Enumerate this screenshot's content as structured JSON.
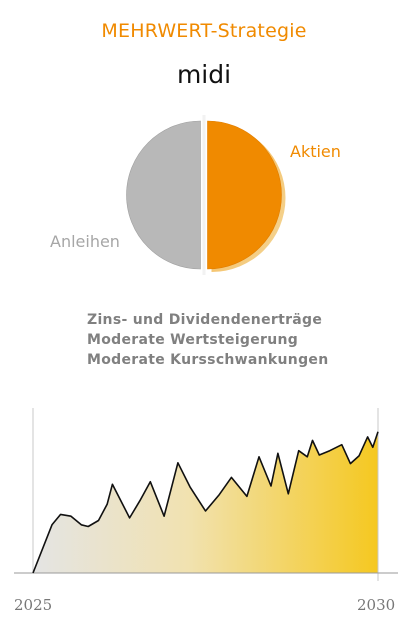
{
  "header": {
    "title": "MEHRWERT-Strategie",
    "subtitle": "midi"
  },
  "colors": {
    "accent": "#f08a00",
    "bond_gray": "#b8b8b8",
    "label_gray": "#a6a6a6",
    "text_gray": "#808080"
  },
  "features": [
    "Zins- und Dividendenerträge",
    "Moderate Wertsteigerung",
    "Moderate Kursschwankungen"
  ],
  "chart_data": [
    {
      "type": "pie",
      "slices": [
        {
          "label": "Aktien",
          "value": 50,
          "color": "#f08a00"
        },
        {
          "label": "Anleihen",
          "value": 50,
          "color": "#b8b8b8"
        }
      ]
    },
    {
      "type": "area",
      "x_ticks": [
        "2025",
        "2030"
      ],
      "x": [
        0,
        0.055,
        0.08,
        0.11,
        0.14,
        0.16,
        0.19,
        0.215,
        0.23,
        0.28,
        0.31,
        0.34,
        0.38,
        0.42,
        0.455,
        0.5,
        0.54,
        0.575,
        0.62,
        0.655,
        0.69,
        0.71,
        0.74,
        0.77,
        0.795,
        0.81,
        0.83,
        0.86,
        0.895,
        0.92,
        0.945,
        0.97,
        0.985,
        1.0
      ],
      "values": [
        0,
        5.6,
        6.8,
        6.6,
        5.6,
        5.4,
        6.1,
        8.0,
        10.3,
        6.4,
        8.4,
        10.6,
        6.6,
        12.8,
        10.0,
        7.2,
        9.1,
        11.1,
        8.9,
        13.5,
        10.1,
        13.9,
        9.2,
        14.2,
        13.5,
        15.4,
        13.7,
        14.2,
        14.9,
        12.7,
        13.6,
        15.8,
        14.6,
        16.4
      ],
      "ylim": [
        0,
        18
      ],
      "fill_gradient": [
        "#e4e4e4",
        "#f5c820"
      ]
    }
  ]
}
